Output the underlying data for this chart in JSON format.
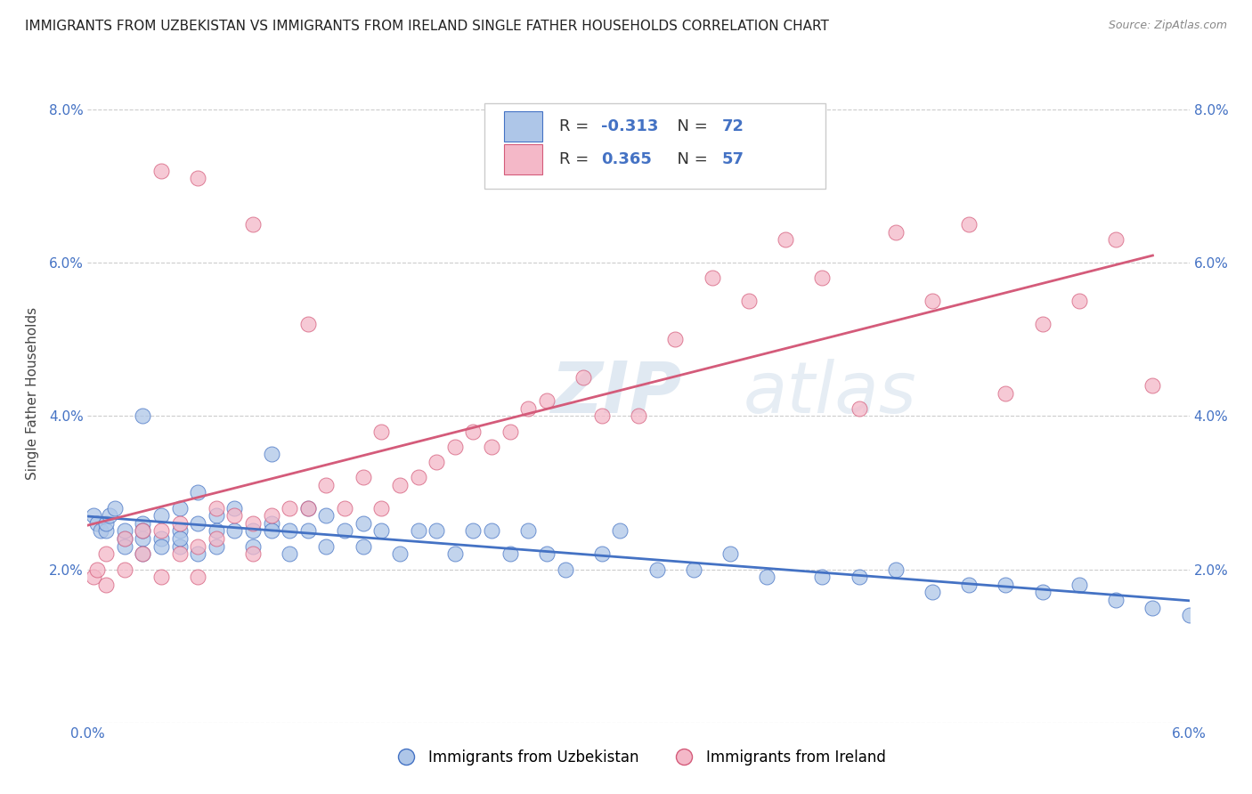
{
  "title": "IMMIGRANTS FROM UZBEKISTAN VS IMMIGRANTS FROM IRELAND SINGLE FATHER HOUSEHOLDS CORRELATION CHART",
  "source": "Source: ZipAtlas.com",
  "ylabel": "Single Father Households",
  "x_label_legend_1": "Immigrants from Uzbekistan",
  "x_label_legend_2": "Immigrants from Ireland",
  "color_uzbekistan": "#aec6e8",
  "color_ireland": "#f4b8c8",
  "line_color_uzbekistan": "#4472c4",
  "line_color_ireland": "#d45b7a",
  "xlim": [
    0.0,
    0.06
  ],
  "ylim": [
    0.0,
    0.086
  ],
  "xtick_vals": [
    0.0,
    0.01,
    0.02,
    0.03,
    0.04,
    0.05,
    0.06
  ],
  "xtick_labels": [
    "0.0%",
    "",
    "",
    "",
    "",
    "",
    "6.0%"
  ],
  "ytick_vals": [
    0.0,
    0.02,
    0.04,
    0.06,
    0.08
  ],
  "ytick_labels": [
    "",
    "2.0%",
    "4.0%",
    "6.0%",
    "8.0%"
  ],
  "uzbekistan_x": [
    0.0003,
    0.0005,
    0.0007,
    0.001,
    0.001,
    0.0012,
    0.0015,
    0.002,
    0.002,
    0.002,
    0.003,
    0.003,
    0.003,
    0.003,
    0.004,
    0.004,
    0.004,
    0.005,
    0.005,
    0.005,
    0.005,
    0.006,
    0.006,
    0.006,
    0.007,
    0.007,
    0.007,
    0.008,
    0.008,
    0.009,
    0.009,
    0.01,
    0.01,
    0.01,
    0.011,
    0.011,
    0.012,
    0.012,
    0.013,
    0.013,
    0.014,
    0.015,
    0.015,
    0.016,
    0.017,
    0.018,
    0.019,
    0.02,
    0.021,
    0.022,
    0.023,
    0.024,
    0.025,
    0.026,
    0.028,
    0.029,
    0.031,
    0.033,
    0.035,
    0.037,
    0.04,
    0.042,
    0.044,
    0.046,
    0.048,
    0.05,
    0.052,
    0.054,
    0.056,
    0.058,
    0.06,
    0.003
  ],
  "uzbekistan_y": [
    0.027,
    0.026,
    0.025,
    0.025,
    0.026,
    0.027,
    0.028,
    0.024,
    0.025,
    0.023,
    0.026,
    0.024,
    0.022,
    0.025,
    0.027,
    0.024,
    0.023,
    0.028,
    0.025,
    0.023,
    0.024,
    0.03,
    0.026,
    0.022,
    0.027,
    0.025,
    0.023,
    0.028,
    0.025,
    0.025,
    0.023,
    0.035,
    0.026,
    0.025,
    0.025,
    0.022,
    0.028,
    0.025,
    0.027,
    0.023,
    0.025,
    0.023,
    0.026,
    0.025,
    0.022,
    0.025,
    0.025,
    0.022,
    0.025,
    0.025,
    0.022,
    0.025,
    0.022,
    0.02,
    0.022,
    0.025,
    0.02,
    0.02,
    0.022,
    0.019,
    0.019,
    0.019,
    0.02,
    0.017,
    0.018,
    0.018,
    0.017,
    0.018,
    0.016,
    0.015,
    0.014,
    0.04
  ],
  "ireland_x": [
    0.0003,
    0.0005,
    0.001,
    0.001,
    0.002,
    0.002,
    0.003,
    0.003,
    0.004,
    0.004,
    0.005,
    0.005,
    0.006,
    0.006,
    0.007,
    0.007,
    0.008,
    0.009,
    0.009,
    0.01,
    0.011,
    0.012,
    0.013,
    0.014,
    0.015,
    0.016,
    0.017,
    0.018,
    0.019,
    0.02,
    0.021,
    0.022,
    0.023,
    0.024,
    0.025,
    0.027,
    0.028,
    0.03,
    0.032,
    0.034,
    0.036,
    0.038,
    0.04,
    0.042,
    0.044,
    0.046,
    0.048,
    0.05,
    0.052,
    0.054,
    0.056,
    0.058,
    0.004,
    0.006,
    0.009,
    0.012,
    0.016
  ],
  "ireland_y": [
    0.019,
    0.02,
    0.022,
    0.018,
    0.024,
    0.02,
    0.025,
    0.022,
    0.025,
    0.019,
    0.026,
    0.022,
    0.023,
    0.019,
    0.028,
    0.024,
    0.027,
    0.026,
    0.022,
    0.027,
    0.028,
    0.028,
    0.031,
    0.028,
    0.032,
    0.028,
    0.031,
    0.032,
    0.034,
    0.036,
    0.038,
    0.036,
    0.038,
    0.041,
    0.042,
    0.045,
    0.04,
    0.04,
    0.05,
    0.058,
    0.055,
    0.063,
    0.058,
    0.041,
    0.064,
    0.055,
    0.065,
    0.043,
    0.052,
    0.055,
    0.063,
    0.044,
    0.072,
    0.071,
    0.065,
    0.052,
    0.038
  ]
}
